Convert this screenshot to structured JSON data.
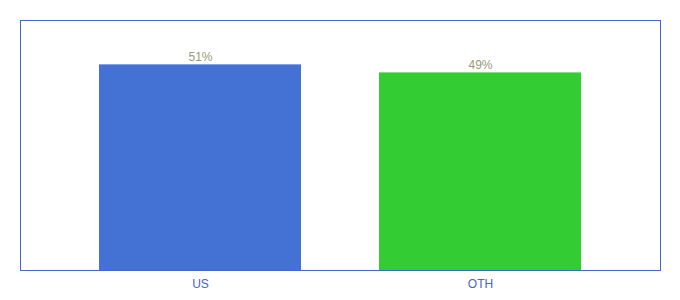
{
  "chart_data": {
    "type": "bar",
    "categories": [
      "US",
      "OTH"
    ],
    "values": [
      51,
      49
    ],
    "value_labels": [
      "51%",
      "49%"
    ],
    "colors": [
      "#4472d4",
      "#33cc33"
    ],
    "ylim": [
      0,
      62
    ],
    "data_labels": true,
    "tick_labels": "x",
    "grid": false
  }
}
